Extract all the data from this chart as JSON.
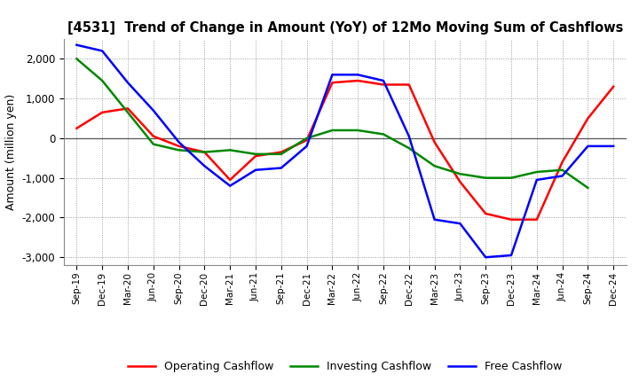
{
  "title": "[4531]  Trend of Change in Amount (YoY) of 12Mo Moving Sum of Cashflows",
  "ylabel": "Amount (million yen)",
  "x_labels": [
    "Sep-19",
    "Dec-19",
    "Mar-20",
    "Jun-20",
    "Sep-20",
    "Dec-20",
    "Mar-21",
    "Jun-21",
    "Sep-21",
    "Dec-21",
    "Mar-22",
    "Jun-22",
    "Sep-22",
    "Dec-22",
    "Mar-23",
    "Jun-23",
    "Sep-23",
    "Dec-23",
    "Mar-24",
    "Jun-24",
    "Sep-24",
    "Dec-24"
  ],
  "operating_cashflow": [
    250,
    650,
    750,
    50,
    -200,
    -350,
    -1050,
    -450,
    -350,
    -50,
    1400,
    1450,
    1350,
    1350,
    -100,
    -1100,
    -1900,
    -2050,
    -2050,
    -600,
    500,
    1300
  ],
  "investing_cashflow": [
    2000,
    1450,
    650,
    -150,
    -300,
    -350,
    -300,
    -400,
    -400,
    0,
    200,
    200,
    100,
    -250,
    -700,
    -900,
    -1000,
    -1000,
    -850,
    -800,
    -1250,
    null
  ],
  "free_cashflow": [
    2350,
    2200,
    1400,
    700,
    -100,
    -700,
    -1200,
    -800,
    -750,
    -200,
    1600,
    1600,
    1450,
    50,
    -2050,
    -2150,
    -3000,
    -2950,
    -1050,
    -950,
    -200,
    -200
  ],
  "ylim": [
    -3200,
    2500
  ],
  "yticks": [
    -3000,
    -2000,
    -1000,
    0,
    1000,
    2000
  ],
  "operating_color": "#ff0000",
  "investing_color": "#008800",
  "free_color": "#0000ff",
  "line_width": 1.8,
  "background_color": "#ffffff",
  "grid_color": "#999999",
  "legend_labels": [
    "Operating Cashflow",
    "Investing Cashflow",
    "Free Cashflow"
  ]
}
